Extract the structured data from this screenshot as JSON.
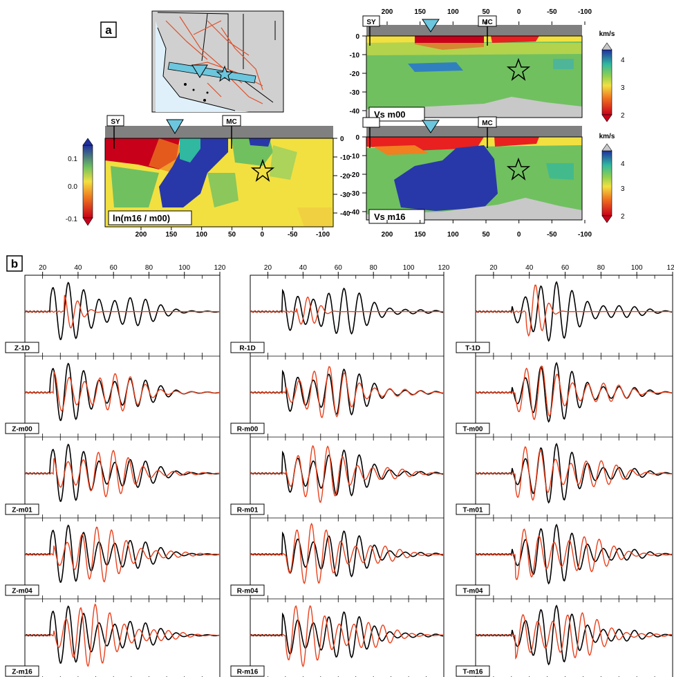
{
  "panel_a": {
    "label": "a",
    "station_a": "SY",
    "station_b": "MC",
    "x_ticks": [
      "200",
      "150",
      "100",
      "50",
      "0",
      "-50",
      "-100"
    ],
    "depth_ticks": [
      "0",
      "-10",
      "-20",
      "-30",
      "-40"
    ],
    "ratio_panel": {
      "title": "ln(m16 / m00)",
      "colorbar_ticks": [
        "0.1",
        "0.0",
        "-0.1"
      ]
    },
    "vs_top": {
      "title": "Vs  m00",
      "unit": "km/s",
      "colorbar_ticks": [
        "4",
        "3",
        "2"
      ]
    },
    "vs_bottom": {
      "title": "Vs  m16",
      "unit": "km/s",
      "colorbar_ticks": [
        "4",
        "3",
        "2"
      ]
    }
  },
  "panel_b": {
    "label": "b",
    "time_ticks": [
      "20",
      "40",
      "60",
      "80",
      "100",
      "120"
    ],
    "columns": [
      {
        "id": "Z",
        "rows": [
          "Z-1D",
          "Z-m00",
          "Z-m01",
          "Z-m04",
          "Z-m16"
        ]
      },
      {
        "id": "R",
        "rows": [
          "R-1D",
          "R-m00",
          "R-m01",
          "R-m04",
          "R-m16"
        ]
      },
      {
        "id": "T",
        "rows": [
          "T-1D",
          "T-m00",
          "T-m01",
          "T-m04",
          "T-m16"
        ]
      }
    ],
    "trace_colors": {
      "data": "#000000",
      "synthetic": "#e8401c"
    }
  },
  "colors": {
    "land": "#d0d0d0",
    "water": "#dff0fa",
    "faults": "#e0502a",
    "station": "#6cc6dd",
    "bar": "#808080"
  }
}
